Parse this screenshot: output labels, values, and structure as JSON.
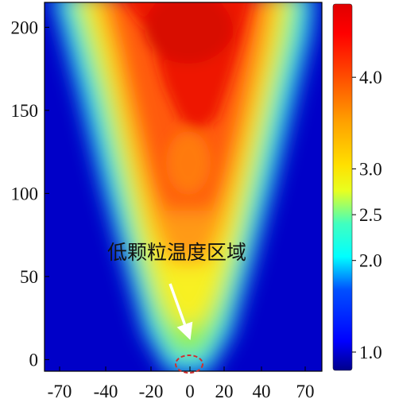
{
  "chart_data": {
    "type": "heatmap",
    "title": "",
    "xlabel": "",
    "ylabel": "",
    "x_ticks": [
      "-70",
      "-40",
      "-20",
      "0",
      "20",
      "40",
      "70"
    ],
    "y_ticks": [
      "0",
      "50",
      "100",
      "150",
      "200"
    ],
    "y_tick_values": [
      0,
      50,
      100,
      150,
      200
    ],
    "ylim": [
      -7,
      215
    ],
    "colorbar_ticks": [
      "1.0",
      "2.0",
      "2.5",
      "3.0",
      "4.0"
    ],
    "colorbar_tick_values": [
      1.0,
      2.0,
      2.5,
      3.0,
      4.0
    ],
    "colorbar_range": [
      0.8,
      4.8
    ],
    "colormap": [
      "#00008b",
      "#0000ff",
      "#00ffff",
      "#ffff00",
      "#ff7f00",
      "#ff0000",
      "#dd0000"
    ],
    "annotation": {
      "text": "低颗粒温度区域",
      "arrow_color": "#ffffff",
      "marker_color": "#d03030"
    }
  }
}
